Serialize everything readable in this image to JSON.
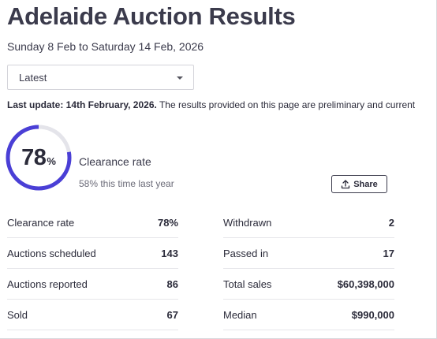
{
  "header": {
    "title": "Adelaide Auction Results",
    "date_range": "Sunday 8 Feb to Saturday 14 Feb, 2026"
  },
  "period_select": {
    "value": "Latest"
  },
  "update": {
    "label": "Last update: 14th February, 2026.",
    "text": " The results provided on this page are preliminary and current"
  },
  "clearance": {
    "rate": 78,
    "rate_number": "78",
    "percent_sign": "%",
    "label": "Clearance rate",
    "last_year": "58% this time last year",
    "accent_color": "#4a3fd6",
    "track_color": "#e4e4ea"
  },
  "share": {
    "label": "Share",
    "icon": "upload-share-icon"
  },
  "stats_left": [
    {
      "label": "Clearance rate",
      "value": "78%"
    },
    {
      "label": "Auctions scheduled",
      "value": "143"
    },
    {
      "label": "Auctions reported",
      "value": "86"
    },
    {
      "label": "Sold",
      "value": "67"
    }
  ],
  "stats_right": [
    {
      "label": "Withdrawn",
      "value": "2"
    },
    {
      "label": "Passed in",
      "value": "17"
    },
    {
      "label": "Total sales",
      "value": "$60,398,000"
    },
    {
      "label": "Median",
      "value": "$990,000"
    }
  ]
}
